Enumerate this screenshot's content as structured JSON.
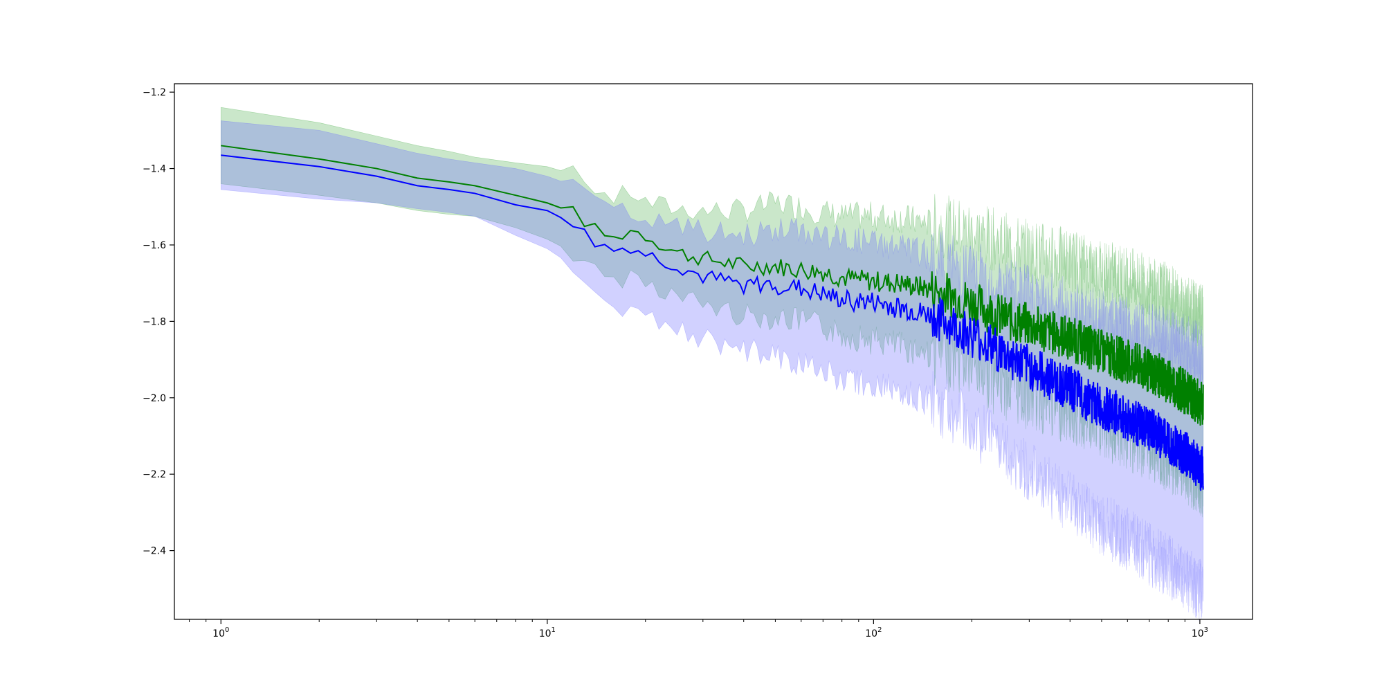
{
  "chart_data": {
    "type": "line",
    "title": "",
    "xlabel": "",
    "ylabel": "",
    "x_scale": "log",
    "xlim": [
      0.72,
      1450
    ],
    "ylim": [
      -2.58,
      -1.178
    ],
    "grid": false,
    "legend": "none",
    "x_ticks": [
      {
        "value": 1,
        "base": "10",
        "exp": "0"
      },
      {
        "value": 10,
        "base": "10",
        "exp": "1"
      },
      {
        "value": 100,
        "base": "10",
        "exp": "2"
      },
      {
        "value": 1000,
        "base": "10",
        "exp": "3"
      }
    ],
    "y_ticks": [
      {
        "value": -1.2,
        "label": "−1.2"
      },
      {
        "value": -1.4,
        "label": "−1.4"
      },
      {
        "value": -1.6,
        "label": "−1.6"
      },
      {
        "value": -1.8,
        "label": "−1.8"
      },
      {
        "value": -2.0,
        "label": "−2.0"
      },
      {
        "value": -2.2,
        "label": "−2.2"
      },
      {
        "value": -2.4,
        "label": "−2.4"
      }
    ],
    "x": [
      1,
      2,
      3,
      4,
      5,
      6,
      8,
      10,
      12,
      14,
      16,
      18,
      20,
      25,
      30,
      40,
      50,
      60,
      70,
      80,
      100,
      120,
      150,
      200,
      250,
      300,
      400,
      500,
      600,
      700,
      800,
      900,
      1024
    ],
    "series": [
      {
        "color": "#008000",
        "band_color": "#2ca02c",
        "mean": [
          -1.34,
          -1.375,
          -1.4,
          -1.425,
          -1.435,
          -1.445,
          -1.47,
          -1.49,
          -1.515,
          -1.56,
          -1.585,
          -1.56,
          -1.575,
          -1.62,
          -1.635,
          -1.655,
          -1.655,
          -1.665,
          -1.67,
          -1.685,
          -1.695,
          -1.7,
          -1.715,
          -1.75,
          -1.79,
          -1.81,
          -1.845,
          -1.88,
          -1.905,
          -1.93,
          -1.955,
          -1.985,
          -2.02
        ],
        "upper": [
          -1.24,
          -1.28,
          -1.315,
          -1.34,
          -1.355,
          -1.37,
          -1.385,
          -1.395,
          -1.415,
          -1.45,
          -1.48,
          -1.46,
          -1.49,
          -1.505,
          -1.51,
          -1.51,
          -1.49,
          -1.5,
          -1.515,
          -1.525,
          -1.525,
          -1.53,
          -1.545,
          -1.565,
          -1.595,
          -1.615,
          -1.64,
          -1.665,
          -1.685,
          -1.71,
          -1.73,
          -1.76,
          -1.79
        ],
        "lower": [
          -1.44,
          -1.47,
          -1.49,
          -1.51,
          -1.52,
          -1.525,
          -1.555,
          -1.585,
          -1.62,
          -1.665,
          -1.695,
          -1.68,
          -1.695,
          -1.735,
          -1.755,
          -1.785,
          -1.79,
          -1.8,
          -1.815,
          -1.835,
          -1.85,
          -1.865,
          -1.885,
          -1.925,
          -1.975,
          -2.005,
          -2.04,
          -2.08,
          -2.11,
          -2.135,
          -2.165,
          -2.195,
          -2.23
        ]
      },
      {
        "color": "#0000ff",
        "band_color": "#6666ff",
        "mean": [
          -1.365,
          -1.395,
          -1.42,
          -1.445,
          -1.455,
          -1.465,
          -1.495,
          -1.51,
          -1.545,
          -1.595,
          -1.615,
          -1.605,
          -1.625,
          -1.655,
          -1.685,
          -1.705,
          -1.705,
          -1.715,
          -1.73,
          -1.745,
          -1.75,
          -1.765,
          -1.785,
          -1.835,
          -1.885,
          -1.92,
          -1.975,
          -2.025,
          -2.055,
          -2.085,
          -2.11,
          -2.145,
          -2.19
        ],
        "upper": [
          -1.275,
          -1.3,
          -1.335,
          -1.36,
          -1.375,
          -1.385,
          -1.4,
          -1.42,
          -1.445,
          -1.475,
          -1.51,
          -1.52,
          -1.535,
          -1.55,
          -1.565,
          -1.575,
          -1.56,
          -1.565,
          -1.575,
          -1.585,
          -1.595,
          -1.605,
          -1.63,
          -1.67,
          -1.71,
          -1.735,
          -1.77,
          -1.8,
          -1.82,
          -1.835,
          -1.845,
          -1.865,
          -1.89
        ],
        "lower": [
          -1.455,
          -1.48,
          -1.49,
          -1.505,
          -1.515,
          -1.525,
          -1.575,
          -1.61,
          -1.655,
          -1.72,
          -1.755,
          -1.77,
          -1.785,
          -1.815,
          -1.845,
          -1.875,
          -1.89,
          -1.91,
          -1.93,
          -1.95,
          -1.965,
          -1.98,
          -2.01,
          -2.07,
          -2.135,
          -2.19,
          -2.275,
          -2.33,
          -2.37,
          -2.41,
          -2.44,
          -2.47,
          -2.51
        ]
      }
    ]
  }
}
